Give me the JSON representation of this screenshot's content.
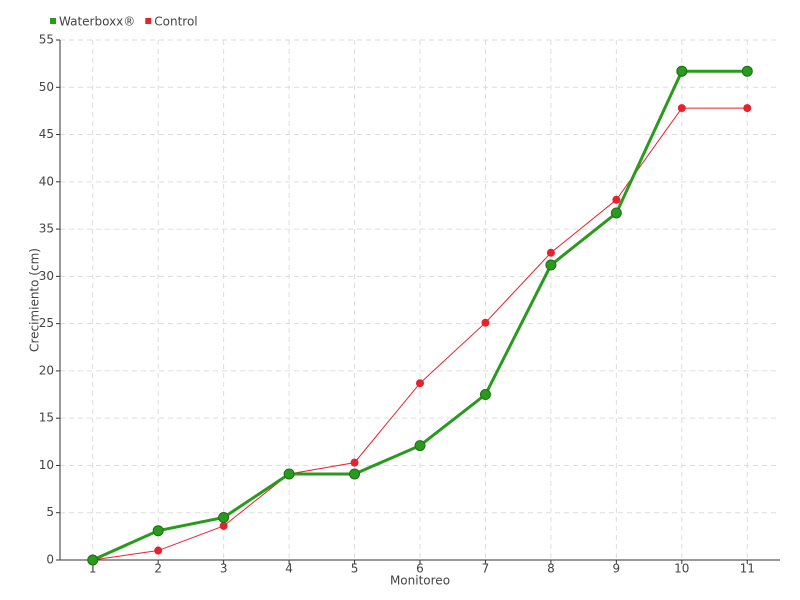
{
  "chart_data": {
    "type": "line",
    "x_label": "Monitoreo",
    "y_label": "Crecimiento (cm)",
    "categories": [
      "1",
      "2",
      "3",
      "4",
      "5",
      "6",
      "7",
      "8",
      "9",
      "10",
      "11"
    ],
    "series": [
      {
        "name": "Waterboxx®",
        "color": "#2a9a1e",
        "values": [
          0,
          3.1,
          4.5,
          9.1,
          9.1,
          12.1,
          17.5,
          31.2,
          36.7,
          51.7,
          51.7
        ]
      },
      {
        "name": "Control",
        "color": "#e8212e",
        "values": [
          0,
          1,
          3.6,
          9.1,
          10.3,
          18.7,
          25.1,
          32.5,
          38.1,
          47.8,
          47.8
        ]
      }
    ],
    "ylim": [
      0,
      55
    ],
    "yticks": [
      0,
      5,
      10,
      15,
      20,
      25,
      30,
      35,
      40,
      45,
      50,
      55
    ],
    "grid": true
  }
}
